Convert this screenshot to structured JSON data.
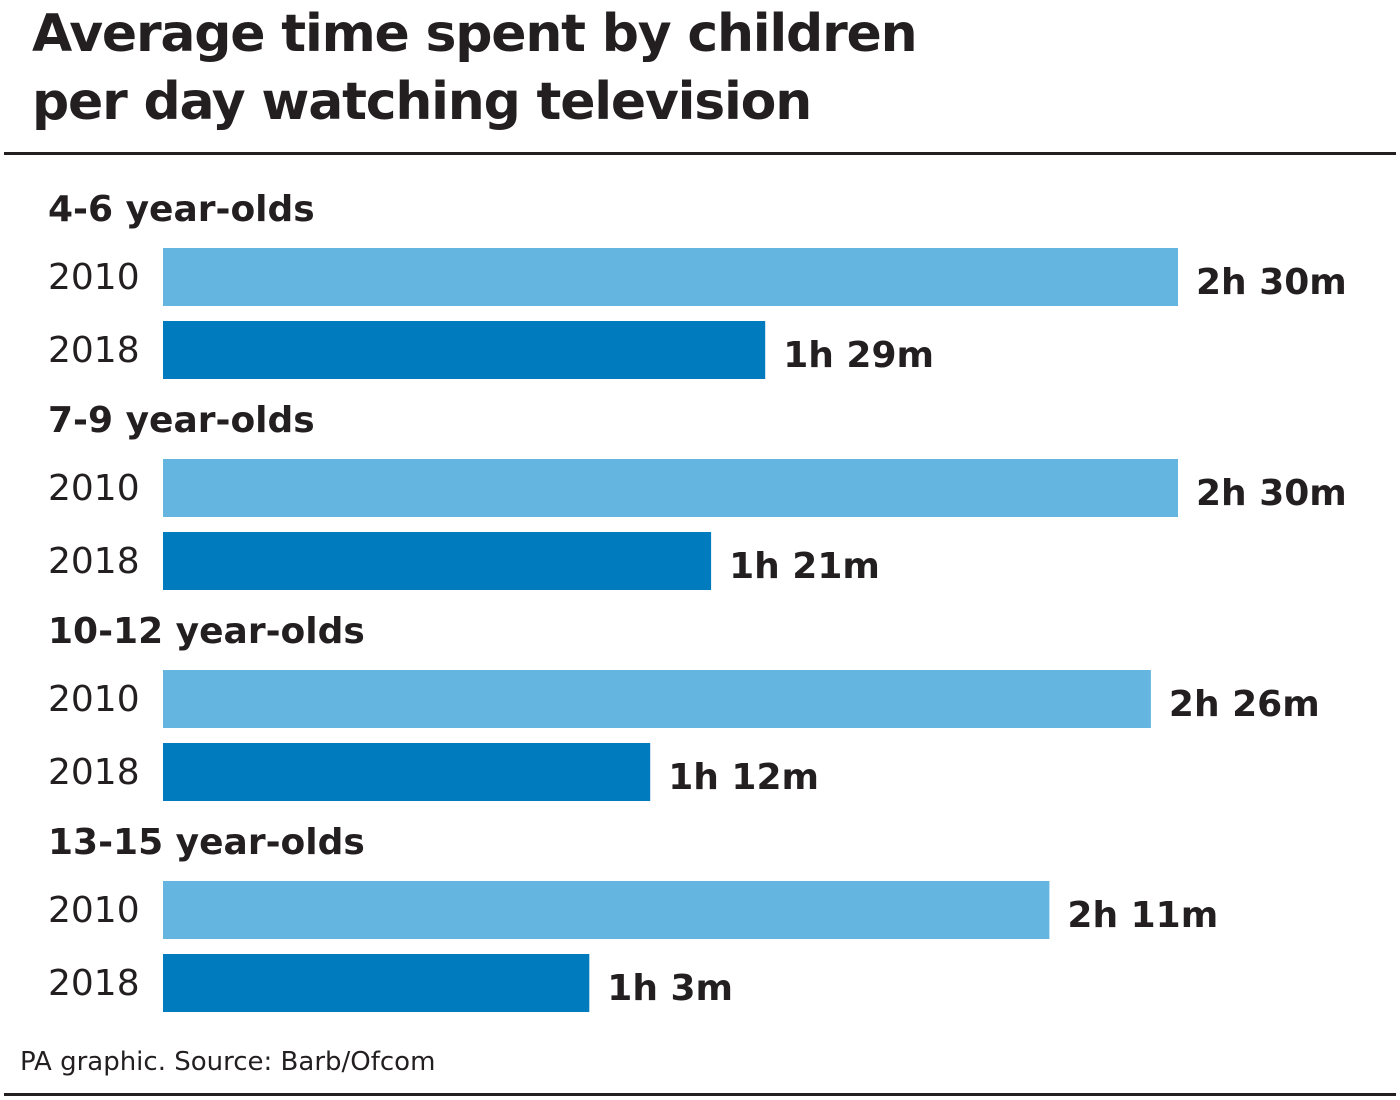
{
  "header": {
    "title_line1": "Average time spent by children",
    "title_line2": "per day watching television"
  },
  "footer": {
    "source": "PA graphic. Source: Barb/Ofcom"
  },
  "colors": {
    "series_2010": "#64b5e0",
    "series_2018": "#007bbd",
    "text": "#231f20"
  },
  "chart_data": {
    "type": "bar",
    "orientation": "horizontal",
    "unit": "minutes",
    "title": "Average time spent by children per day watching television",
    "categories": [
      "4-6 year-olds",
      "7-9 year-olds",
      "10-12 year-olds",
      "13-15 year-olds"
    ],
    "series": [
      {
        "name": "2010",
        "values": [
          150,
          150,
          146,
          131
        ],
        "labels": [
          "2h 30m",
          "2h 30m",
          "2h 26m",
          "2h 11m"
        ]
      },
      {
        "name": "2018",
        "values": [
          89,
          81,
          72,
          63
        ],
        "labels": [
          "1h 29m",
          "1h 21m",
          "1h 12m",
          "1h 3m"
        ]
      }
    ],
    "xlim": [
      0,
      150
    ],
    "grid": false
  }
}
